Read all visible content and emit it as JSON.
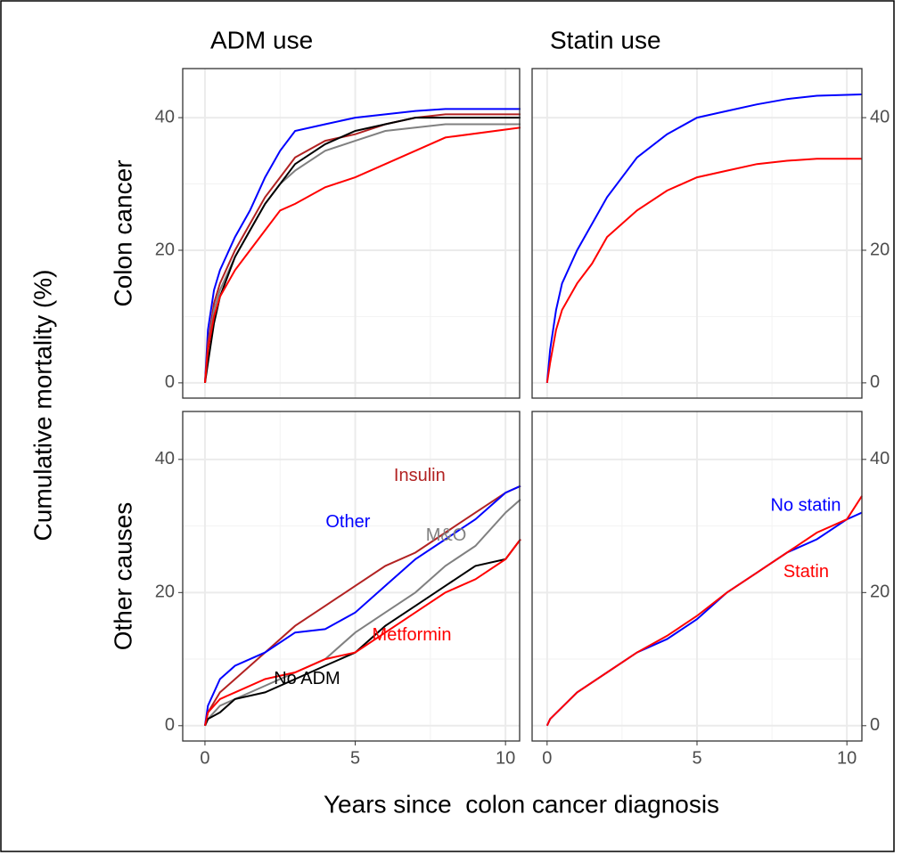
{
  "xlabel": "Years since  colon cancer diagnosis",
  "ylabel": "Cumulative mortality (%)",
  "col_titles": [
    "ADM use",
    "Statin use"
  ],
  "row_titles": [
    "Colon cancer",
    "Other causes"
  ],
  "chart_data": [
    {
      "type": "line",
      "y_axis_side": "left",
      "grid": true,
      "xlim": [
        -0.74,
        10.47
      ],
      "xticks": [
        0,
        5,
        10
      ],
      "xminor": [
        2.5,
        7.5
      ],
      "ylim": [
        -2.3,
        47.4
      ],
      "yticks": [
        0,
        20,
        40
      ],
      "yminor": [
        10,
        30
      ],
      "x": [
        0,
        0.1,
        0.3,
        0.5,
        1,
        1.5,
        2,
        2.5,
        3,
        4,
        5,
        6,
        7,
        8,
        10.5
      ],
      "series": [
        {
          "name": "Other",
          "color": "#0000ff",
          "values": [
            0,
            8,
            14,
            17,
            22,
            26,
            31,
            35,
            38,
            39,
            40,
            40.5,
            41,
            41.3,
            41.3
          ]
        },
        {
          "name": "Insulin",
          "color": "#b22222",
          "values": [
            0,
            6,
            12,
            15,
            20,
            24,
            28,
            31,
            34,
            36.5,
            37.5,
            39,
            40,
            40.5,
            40.5
          ]
        },
        {
          "name": "M&O",
          "color": "#808080",
          "values": [
            0,
            5,
            11,
            14,
            19,
            23,
            27,
            30,
            32,
            35,
            36.5,
            38,
            38.5,
            39,
            39
          ]
        },
        {
          "name": "No ADM",
          "color": "#000000",
          "values": [
            0,
            3,
            9,
            13,
            19,
            23,
            27,
            30,
            33,
            36,
            38,
            39,
            40,
            40,
            40
          ]
        },
        {
          "name": "Metformin",
          "color": "#ff0000",
          "values": [
            0,
            5,
            10,
            13,
            17,
            20,
            23,
            26,
            27,
            29.5,
            31,
            33,
            35,
            37,
            38.5
          ]
        }
      ]
    },
    {
      "type": "line",
      "y_axis_side": "right",
      "grid": true,
      "xlim": [
        -0.5,
        10.5
      ],
      "xticks": [
        0,
        5,
        10
      ],
      "xminor": [
        2.5,
        7.5
      ],
      "ylim": [
        -2.3,
        47.4
      ],
      "yticks": [
        0,
        20,
        40
      ],
      "yminor": [
        10,
        30
      ],
      "x": [
        0,
        0.1,
        0.3,
        0.5,
        1,
        1.5,
        2,
        3,
        4,
        5,
        6,
        7,
        8,
        9,
        10.5
      ],
      "series": [
        {
          "name": "No statin",
          "color": "#0000ff",
          "values": [
            0,
            5,
            11,
            15,
            20,
            24,
            28,
            34,
            37.5,
            40,
            41,
            42,
            42.8,
            43.3,
            43.5
          ]
        },
        {
          "name": "Statin",
          "color": "#ff0000",
          "values": [
            0,
            3,
            8,
            11,
            15,
            18,
            22,
            26,
            29,
            31,
            32,
            33,
            33.5,
            33.8,
            33.8
          ]
        }
      ]
    },
    {
      "type": "line",
      "y_axis_side": "left",
      "grid": true,
      "xlim": [
        -0.74,
        10.47
      ],
      "xticks": [
        0,
        5,
        10
      ],
      "xminor": [
        2.5,
        7.5
      ],
      "ylim": [
        -2.3,
        47.2
      ],
      "yticks": [
        0,
        20,
        40
      ],
      "yminor": [
        10,
        30
      ],
      "x": [
        0,
        0.1,
        0.5,
        1,
        2,
        3,
        4,
        5,
        6,
        7,
        8,
        9,
        10,
        10.5
      ],
      "series": [
        {
          "name": "Insulin",
          "color": "#b22222",
          "values": [
            0,
            2,
            5,
            7,
            11,
            15,
            18,
            21,
            24,
            26,
            29,
            32,
            35,
            36
          ]
        },
        {
          "name": "Other",
          "color": "#0000ff",
          "values": [
            0,
            3,
            7,
            9,
            11,
            14,
            14.5,
            17,
            21,
            25,
            28,
            31,
            35,
            36
          ]
        },
        {
          "name": "M&O",
          "color": "#808080",
          "values": [
            0,
            1,
            3,
            4,
            6,
            8,
            10,
            14,
            17,
            20,
            24,
            27,
            32,
            34
          ]
        },
        {
          "name": "No ADM",
          "color": "#000000",
          "values": [
            0,
            1,
            2,
            4,
            5,
            7,
            9,
            11,
            15,
            18,
            21,
            24,
            25,
            28
          ]
        },
        {
          "name": "Metformin",
          "color": "#ff0000",
          "values": [
            0,
            2,
            4,
            5,
            7,
            8,
            10,
            11,
            14,
            17,
            20,
            22,
            25,
            28
          ]
        }
      ],
      "annotations": [
        {
          "text": "Insulin",
          "x": 8.0,
          "y": 37.5,
          "color": "#b22222"
        },
        {
          "text": "Other",
          "x": 5.5,
          "y": 30.5,
          "color": "#0000ff"
        },
        {
          "text": "M&O",
          "x": 8.7,
          "y": 28.5,
          "color": "#808080"
        },
        {
          "text": "Metformin",
          "x": 8.2,
          "y": 13.5,
          "color": "#ff0000"
        },
        {
          "text": "No ADM",
          "x": 4.5,
          "y": 7,
          "color": "#000000"
        }
      ]
    },
    {
      "type": "line",
      "y_axis_side": "right",
      "grid": true,
      "xlim": [
        -0.5,
        10.5
      ],
      "xticks": [
        0,
        5,
        10
      ],
      "xminor": [
        2.5,
        7.5
      ],
      "ylim": [
        -2.3,
        47.2
      ],
      "yticks": [
        0,
        20,
        40
      ],
      "yminor": [
        10,
        30
      ],
      "x": [
        0,
        0.1,
        1,
        2,
        3,
        4,
        5,
        6,
        7,
        8,
        9,
        10,
        10.5
      ],
      "series": [
        {
          "name": "No statin",
          "color": "#0000ff",
          "values": [
            0,
            1,
            5,
            8,
            11,
            13,
            16,
            20,
            23,
            26,
            28,
            31,
            32
          ]
        },
        {
          "name": "Statin",
          "color": "#ff0000",
          "values": [
            0,
            1,
            5,
            8,
            11,
            13.5,
            16.5,
            20,
            23,
            26,
            29,
            31,
            34.5
          ]
        }
      ],
      "annotations": [
        {
          "text": "No statin",
          "x": 9.8,
          "y": 33,
          "color": "#0000ff"
        },
        {
          "text": "Statin",
          "x": 9.4,
          "y": 23,
          "color": "#ff0000"
        }
      ]
    }
  ]
}
